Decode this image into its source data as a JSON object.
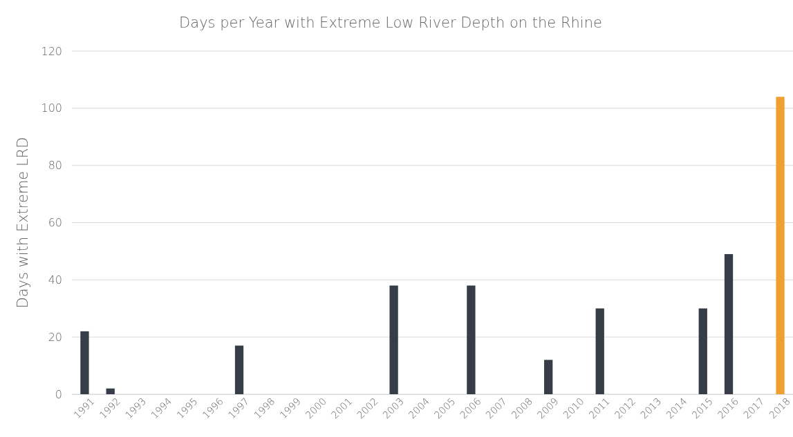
{
  "chart_data": {
    "type": "bar",
    "title": "Days per Year with Extreme Low River Depth on the Rhine",
    "ylabel": "Days with Extreme LRD",
    "categories": [
      "1991",
      "1992",
      "1993",
      "1994",
      "1995",
      "1996",
      "1997",
      "1998",
      "1999",
      "2000",
      "2001",
      "2002",
      "2003",
      "2004",
      "2005",
      "2006",
      "2007",
      "2008",
      "2009",
      "2010",
      "2011",
      "2012",
      "2013",
      "2014",
      "2015",
      "2016",
      "2017",
      "2018"
    ],
    "values": [
      22,
      2,
      0,
      0,
      0,
      0,
      17,
      0,
      0,
      0,
      0,
      0,
      38,
      0,
      0,
      38,
      0,
      0,
      12,
      0,
      30,
      0,
      0,
      0,
      30,
      49,
      0,
      104
    ],
    "colors": [
      "#363d47",
      "#363d47",
      "#363d47",
      "#363d47",
      "#363d47",
      "#363d47",
      "#363d47",
      "#363d47",
      "#363d47",
      "#363d47",
      "#363d47",
      "#363d47",
      "#363d47",
      "#363d47",
      "#363d47",
      "#363d47",
      "#363d47",
      "#363d47",
      "#363d47",
      "#363d47",
      "#363d47",
      "#363d47",
      "#363d47",
      "#363d47",
      "#363d47",
      "#363d47",
      "#363d47",
      "#f0a030"
    ],
    "ylim": [
      0,
      120
    ],
    "yticks": [
      0,
      20,
      40,
      60,
      80,
      100,
      120
    ],
    "grid": "y"
  }
}
